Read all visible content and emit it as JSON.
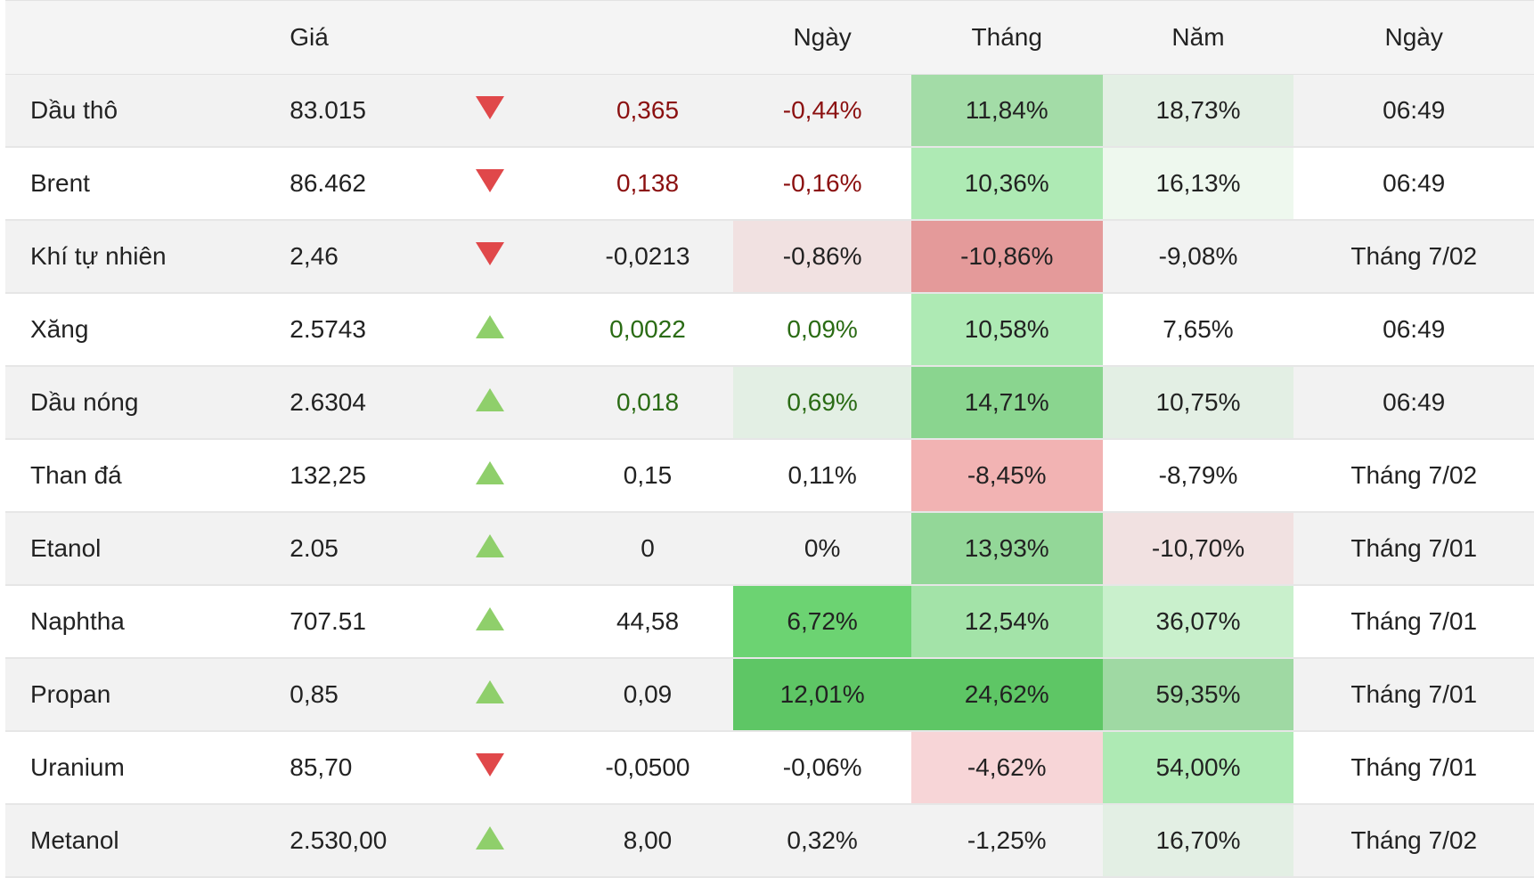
{
  "headers": {
    "name": "",
    "price": "Giá",
    "arrow": "",
    "change": "",
    "day": "Ngày",
    "month": "Tháng",
    "year": "Năm",
    "date": "Ngày"
  },
  "colors": {
    "header_bg": "#f4f4f4",
    "row_odd": "#f2f2f2",
    "row_even": "#ffffff",
    "down_arrow": "#e0484a",
    "up_arrow": "#8fcf6b",
    "negative_text": "#8b1010",
    "positive_text": "#2a6b14"
  },
  "rows": [
    {
      "name": "Dầu thô",
      "price": "83.015",
      "direction": "down",
      "change": "0,365",
      "change_tone": "neg",
      "day": "-0,44%",
      "day_tone": "neg",
      "day_bg": "",
      "month": "11,84%",
      "month_bg": "#a3dca7",
      "year": "18,73%",
      "year_bg": "#e3efe4",
      "date": "06:49"
    },
    {
      "name": "Brent",
      "price": "86.462",
      "direction": "down",
      "change": "0,138",
      "change_tone": "neg",
      "day": "-0,16%",
      "day_tone": "neg",
      "day_bg": "",
      "month": "10,36%",
      "month_bg": "#aeeab4",
      "year": "16,13%",
      "year_bg": "#eef8ee",
      "date": "06:49"
    },
    {
      "name": "Khí tự nhiên",
      "price": "2,46",
      "direction": "down",
      "change": "-0,0213",
      "change_tone": "",
      "day": "-0,86%",
      "day_tone": "",
      "day_bg": "#f1e1e1",
      "month": "-10,86%",
      "month_bg": "#e49a9a",
      "year": "-9,08%",
      "year_bg": "",
      "date": "Tháng 7/02"
    },
    {
      "name": "Xăng",
      "price": "2.5743",
      "direction": "up",
      "change": "0,0022",
      "change_tone": "pos",
      "day": "0,09%",
      "day_tone": "pos",
      "day_bg": "",
      "month": "10,58%",
      "month_bg": "#aeeab4",
      "year": "7,65%",
      "year_bg": "",
      "date": "06:49"
    },
    {
      "name": "Dầu nóng",
      "price": "2.6304",
      "direction": "up",
      "change": "0,018",
      "change_tone": "pos",
      "day": "0,69%",
      "day_tone": "pos",
      "day_bg": "#e3efe4",
      "month": "14,71%",
      "month_bg": "#8ad58f",
      "year": "10,75%",
      "year_bg": "#e3efe4",
      "date": "06:49"
    },
    {
      "name": "Than đá",
      "price": "132,25",
      "direction": "up",
      "change": "0,15",
      "change_tone": "",
      "day": "0,11%",
      "day_tone": "",
      "day_bg": "",
      "month": "-8,45%",
      "month_bg": "#f2b3b3",
      "year": "-8,79%",
      "year_bg": "",
      "date": "Tháng 7/02"
    },
    {
      "name": "Etanol",
      "price": "2.05",
      "direction": "up",
      "change": "0",
      "change_tone": "",
      "day": "0%",
      "day_tone": "",
      "day_bg": "",
      "month": "13,93%",
      "month_bg": "#93d798",
      "year": "-10,70%",
      "year_bg": "#f1e1e1",
      "date": "Tháng 7/01"
    },
    {
      "name": "Naphtha",
      "price": "707.51",
      "direction": "up",
      "change": "44,58",
      "change_tone": "",
      "day": "6,72%",
      "day_tone": "",
      "day_bg": "#6cd372",
      "month": "12,54%",
      "month_bg": "#a3e3a8",
      "year": "36,07%",
      "year_bg": "#c9f0cc",
      "date": "Tháng 7/01"
    },
    {
      "name": "Propan",
      "price": "0,85",
      "direction": "up",
      "change": "0,09",
      "change_tone": "",
      "day": "12,01%",
      "day_tone": "",
      "day_bg": "#5ec665",
      "month": "24,62%",
      "month_bg": "#5ec665",
      "year": "59,35%",
      "year_bg": "#9fd9a3",
      "date": "Tháng 7/01"
    },
    {
      "name": "Uranium",
      "price": "85,70",
      "direction": "down",
      "change": "-0,0500",
      "change_tone": "",
      "day": "-0,06%",
      "day_tone": "",
      "day_bg": "",
      "month": "-4,62%",
      "month_bg": "#f7d5d7",
      "year": "54,00%",
      "year_bg": "#aeeab4",
      "date": "Tháng 7/01"
    },
    {
      "name": "Metanol",
      "price": "2.530,00",
      "direction": "up",
      "change": "8,00",
      "change_tone": "",
      "day": "0,32%",
      "day_tone": "",
      "day_bg": "",
      "month": "-1,25%",
      "month_bg": "",
      "year": "16,70%",
      "year_bg": "#e3efe4",
      "date": "Tháng 7/02"
    }
  ]
}
